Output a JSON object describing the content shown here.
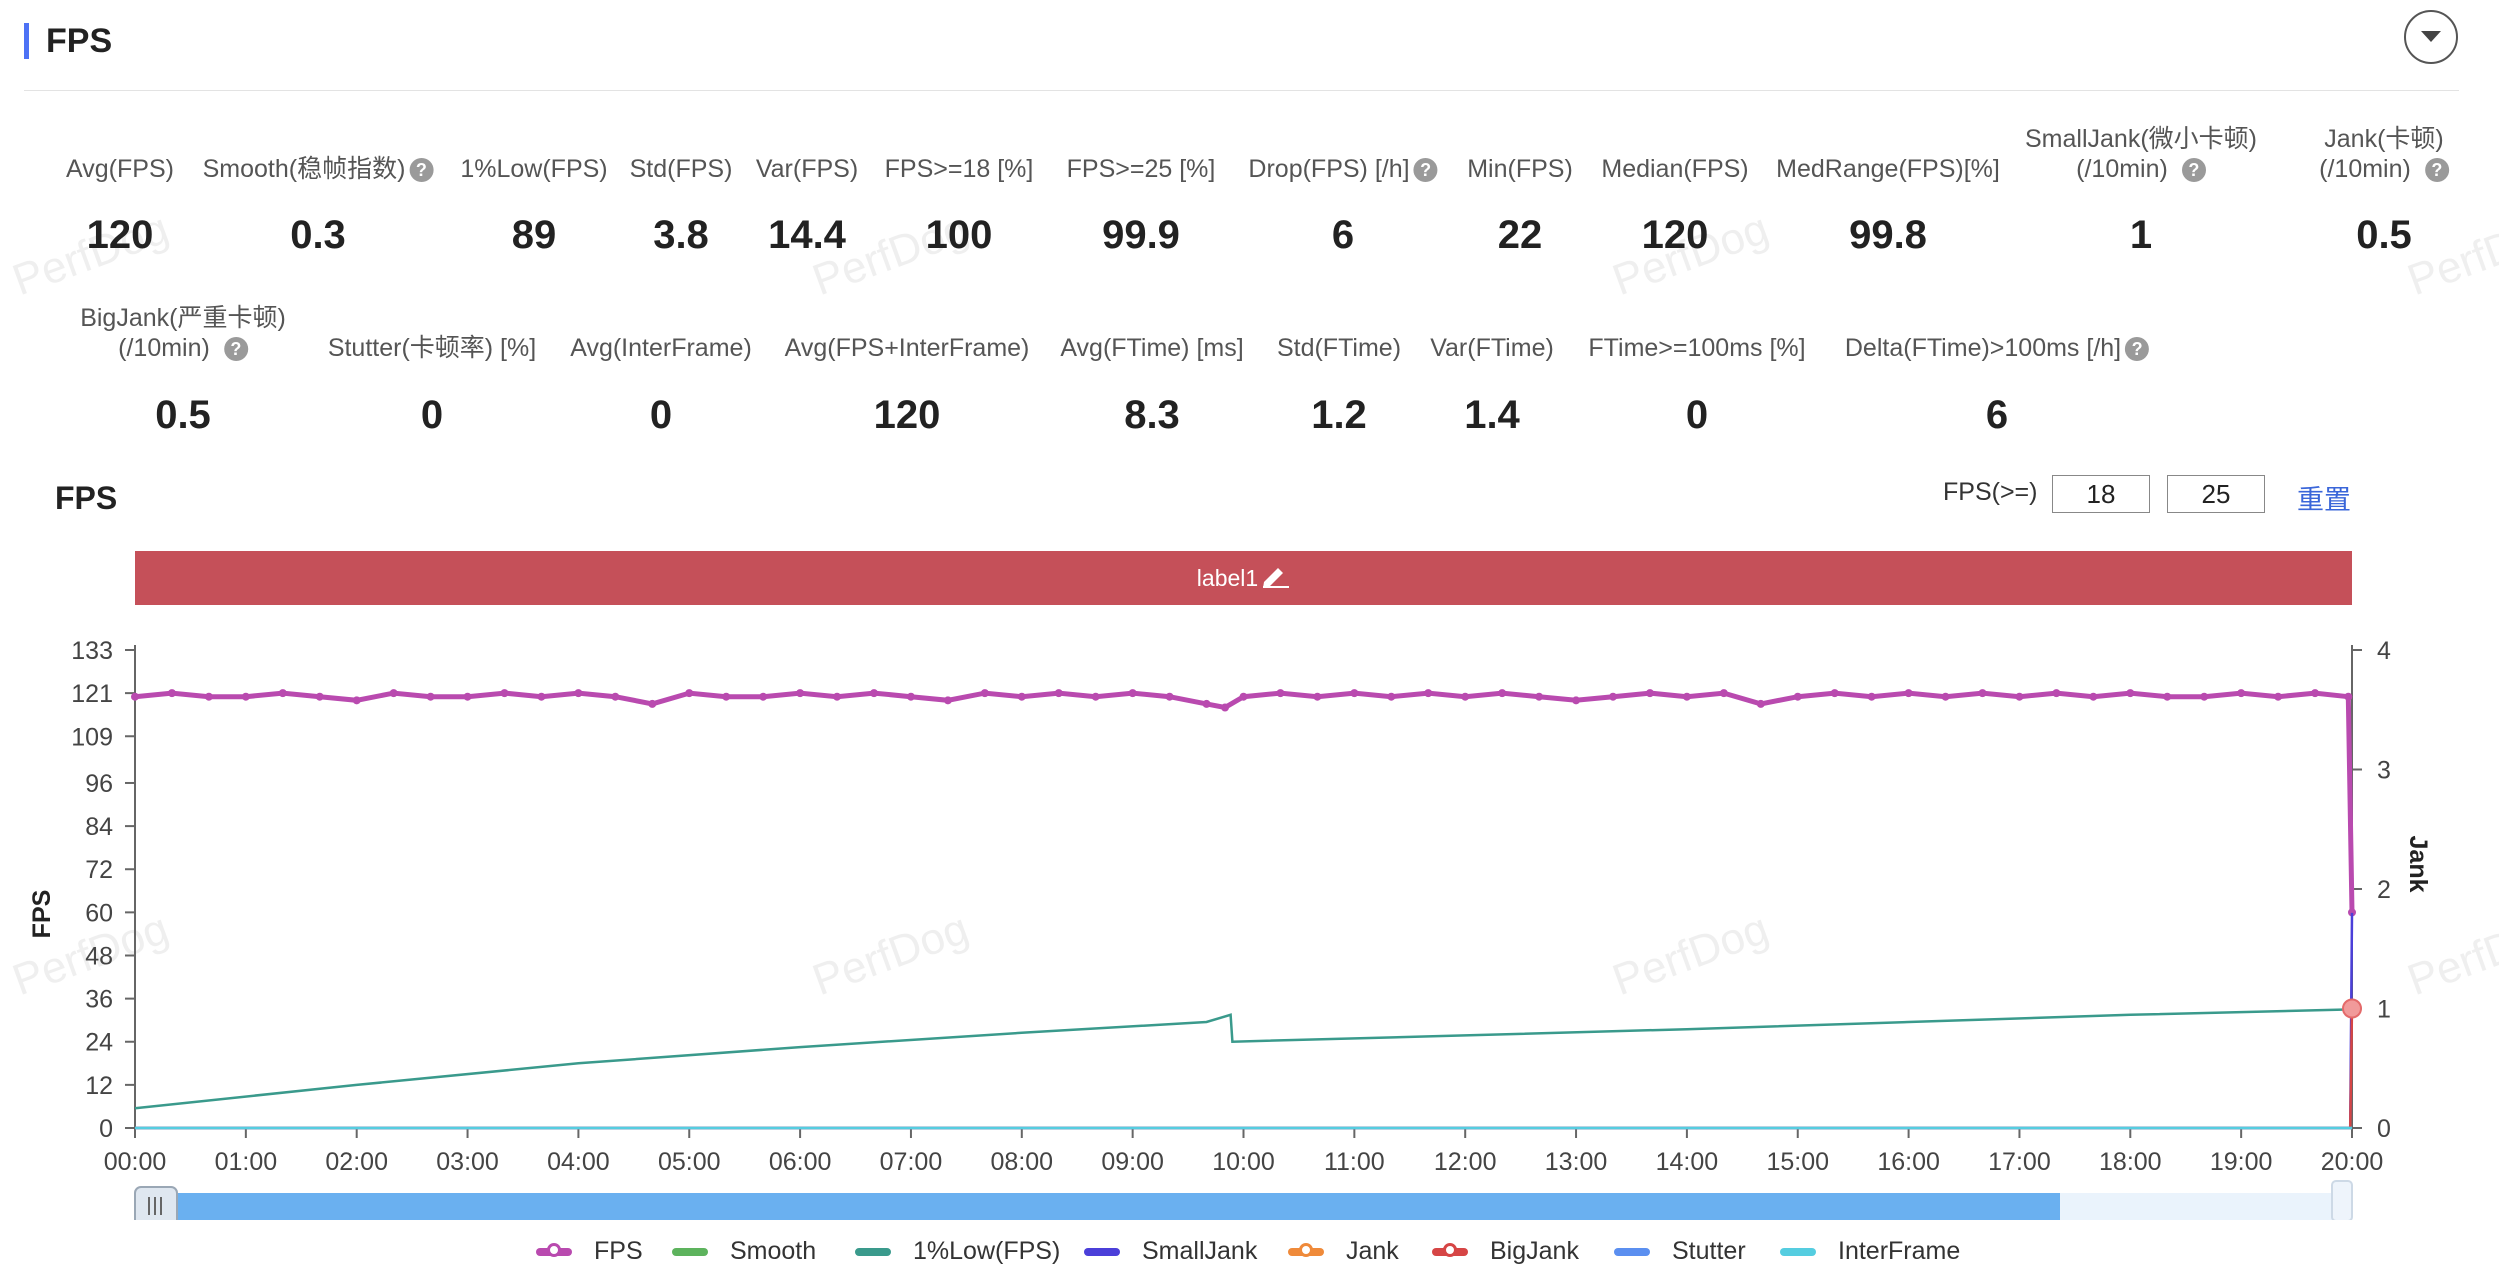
{
  "section": {
    "title": "FPS"
  },
  "metrics_row1": [
    {
      "label": "Avg(FPS)",
      "value": "120",
      "help": false
    },
    {
      "label": "Smooth(稳帧指数)",
      "value": "0.3",
      "help": true
    },
    {
      "label": "1%Low(FPS)",
      "value": "89",
      "help": false
    },
    {
      "label": "Std(FPS)",
      "value": "3.8",
      "help": false
    },
    {
      "label": "Var(FPS)",
      "value": "14.4",
      "help": false
    },
    {
      "label": "FPS>=18 [%]",
      "value": "100",
      "help": false
    },
    {
      "label": "FPS>=25 [%]",
      "value": "99.9",
      "help": false
    },
    {
      "label": "Drop(FPS) [/h]",
      "value": "6",
      "help": true
    },
    {
      "label": "Min(FPS)",
      "value": "22",
      "help": false
    },
    {
      "label": "Median(FPS)",
      "value": "120",
      "help": false
    },
    {
      "label": "MedRange(FPS)[%]",
      "value": "99.8",
      "help": false
    },
    {
      "label": "SmallJank(微小卡顿)",
      "label2": "(/10min)",
      "value": "1",
      "help": true
    },
    {
      "label": "Jank(卡顿)",
      "label2": "(/10min)",
      "value": "0.5",
      "help": true
    }
  ],
  "metrics_row2": [
    {
      "label": "BigJank(严重卡顿)",
      "label2": "(/10min)",
      "value": "0.5",
      "help": true
    },
    {
      "label": "Stutter(卡顿率) [%]",
      "value": "0",
      "help": false
    },
    {
      "label": "Avg(InterFrame)",
      "value": "0",
      "help": false
    },
    {
      "label": "Avg(FPS+InterFrame)",
      "value": "120",
      "help": false
    },
    {
      "label": "Avg(FTime) [ms]",
      "value": "8.3",
      "help": false
    },
    {
      "label": "Std(FTime)",
      "value": "1.2",
      "help": false
    },
    {
      "label": "Var(FTime)",
      "value": "1.4",
      "help": false
    },
    {
      "label": "FTime>=100ms [%]",
      "value": "0",
      "help": false
    },
    {
      "label": "Delta(FTime)>100ms [/h]",
      "value": "6",
      "help": true
    }
  ],
  "chart_panel": {
    "title": "FPS",
    "filter_label": "FPS(>=)",
    "filter_values": [
      "18",
      "25"
    ],
    "reset_label": "重置",
    "band_label": "label1",
    "watermark": "PerfDog"
  },
  "chart_data": {
    "type": "line",
    "x_ticks": [
      "00:00",
      "01:00",
      "02:00",
      "03:00",
      "04:00",
      "05:00",
      "06:00",
      "07:00",
      "08:00",
      "09:00",
      "10:00",
      "11:00",
      "12:00",
      "13:00",
      "14:00",
      "15:00",
      "16:00",
      "17:00",
      "18:00",
      "19:00",
      "20:00"
    ],
    "ylabel": "FPS",
    "ylabel_right": "Jank",
    "y_ticks": [
      0,
      12,
      24,
      36,
      48,
      60,
      72,
      84,
      96,
      109,
      121,
      133
    ],
    "ylim": [
      0,
      133
    ],
    "y2_ticks": [
      0,
      1,
      2,
      3,
      4
    ],
    "y2lim": [
      0,
      4
    ],
    "series": [
      {
        "name": "FPS",
        "color": "#b94aaf",
        "x_minutes": [
          0,
          20,
          40,
          60,
          80,
          100,
          120,
          140,
          160,
          180,
          200,
          220,
          240,
          260,
          280,
          300,
          320,
          340,
          360,
          380,
          400,
          420,
          440,
          460,
          480,
          500,
          520,
          540,
          560,
          580,
          590,
          600,
          620,
          640,
          660,
          680,
          700,
          720,
          740,
          760,
          780,
          800,
          820,
          840,
          860,
          880,
          900,
          920,
          940,
          960,
          980,
          1000,
          1020,
          1040,
          1060,
          1080,
          1100,
          1120,
          1140,
          1160,
          1180,
          1198,
          1200
        ],
        "values": [
          120,
          121,
          120,
          120,
          121,
          120,
          119,
          121,
          120,
          120,
          121,
          120,
          121,
          120,
          118,
          121,
          120,
          120,
          121,
          120,
          121,
          120,
          119,
          121,
          120,
          121,
          120,
          121,
          120,
          118,
          117,
          120,
          121,
          120,
          121,
          120,
          121,
          120,
          121,
          120,
          119,
          120,
          121,
          120,
          121,
          118,
          120,
          121,
          120,
          121,
          120,
          121,
          120,
          121,
          120,
          121,
          120,
          120,
          121,
          120,
          121,
          120,
          60
        ]
      },
      {
        "name": "Smooth",
        "color": "#5db35d",
        "x_minutes": [
          0,
          1200
        ],
        "values": [
          0,
          0
        ]
      },
      {
        "name": "1%Low(FPS)",
        "color": "#3a9a8c",
        "x_minutes": [
          0,
          120,
          240,
          360,
          480,
          580,
          593,
          594,
          700,
          840,
          960,
          1080,
          1200
        ],
        "values": [
          5.5,
          12,
          18,
          22.5,
          26.5,
          29.5,
          31.5,
          24,
          25.5,
          27.5,
          29.5,
          31.5,
          33
        ]
      },
      {
        "name": "SmallJank",
        "color": "#4b3fd9",
        "x_minutes": [
          0,
          1199,
          1200
        ],
        "values": [
          0,
          0,
          1.8
        ]
      },
      {
        "name": "Jank",
        "color": "#ef8a3a",
        "x_minutes": [
          0,
          1200
        ],
        "values": [
          0,
          0
        ]
      },
      {
        "name": "BigJank",
        "color": "#d64545",
        "x_minutes": [
          0,
          1199,
          1200
        ],
        "values": [
          0,
          0,
          1
        ]
      },
      {
        "name": "Stutter",
        "color": "#5b8ff0",
        "x_minutes": [
          0,
          1200
        ],
        "values": [
          0,
          0
        ]
      },
      {
        "name": "InterFrame",
        "color": "#55cde0",
        "x_minutes": [
          0,
          1200
        ],
        "values": [
          0,
          0
        ]
      }
    ],
    "grid": false,
    "legend_position": "bottom"
  }
}
